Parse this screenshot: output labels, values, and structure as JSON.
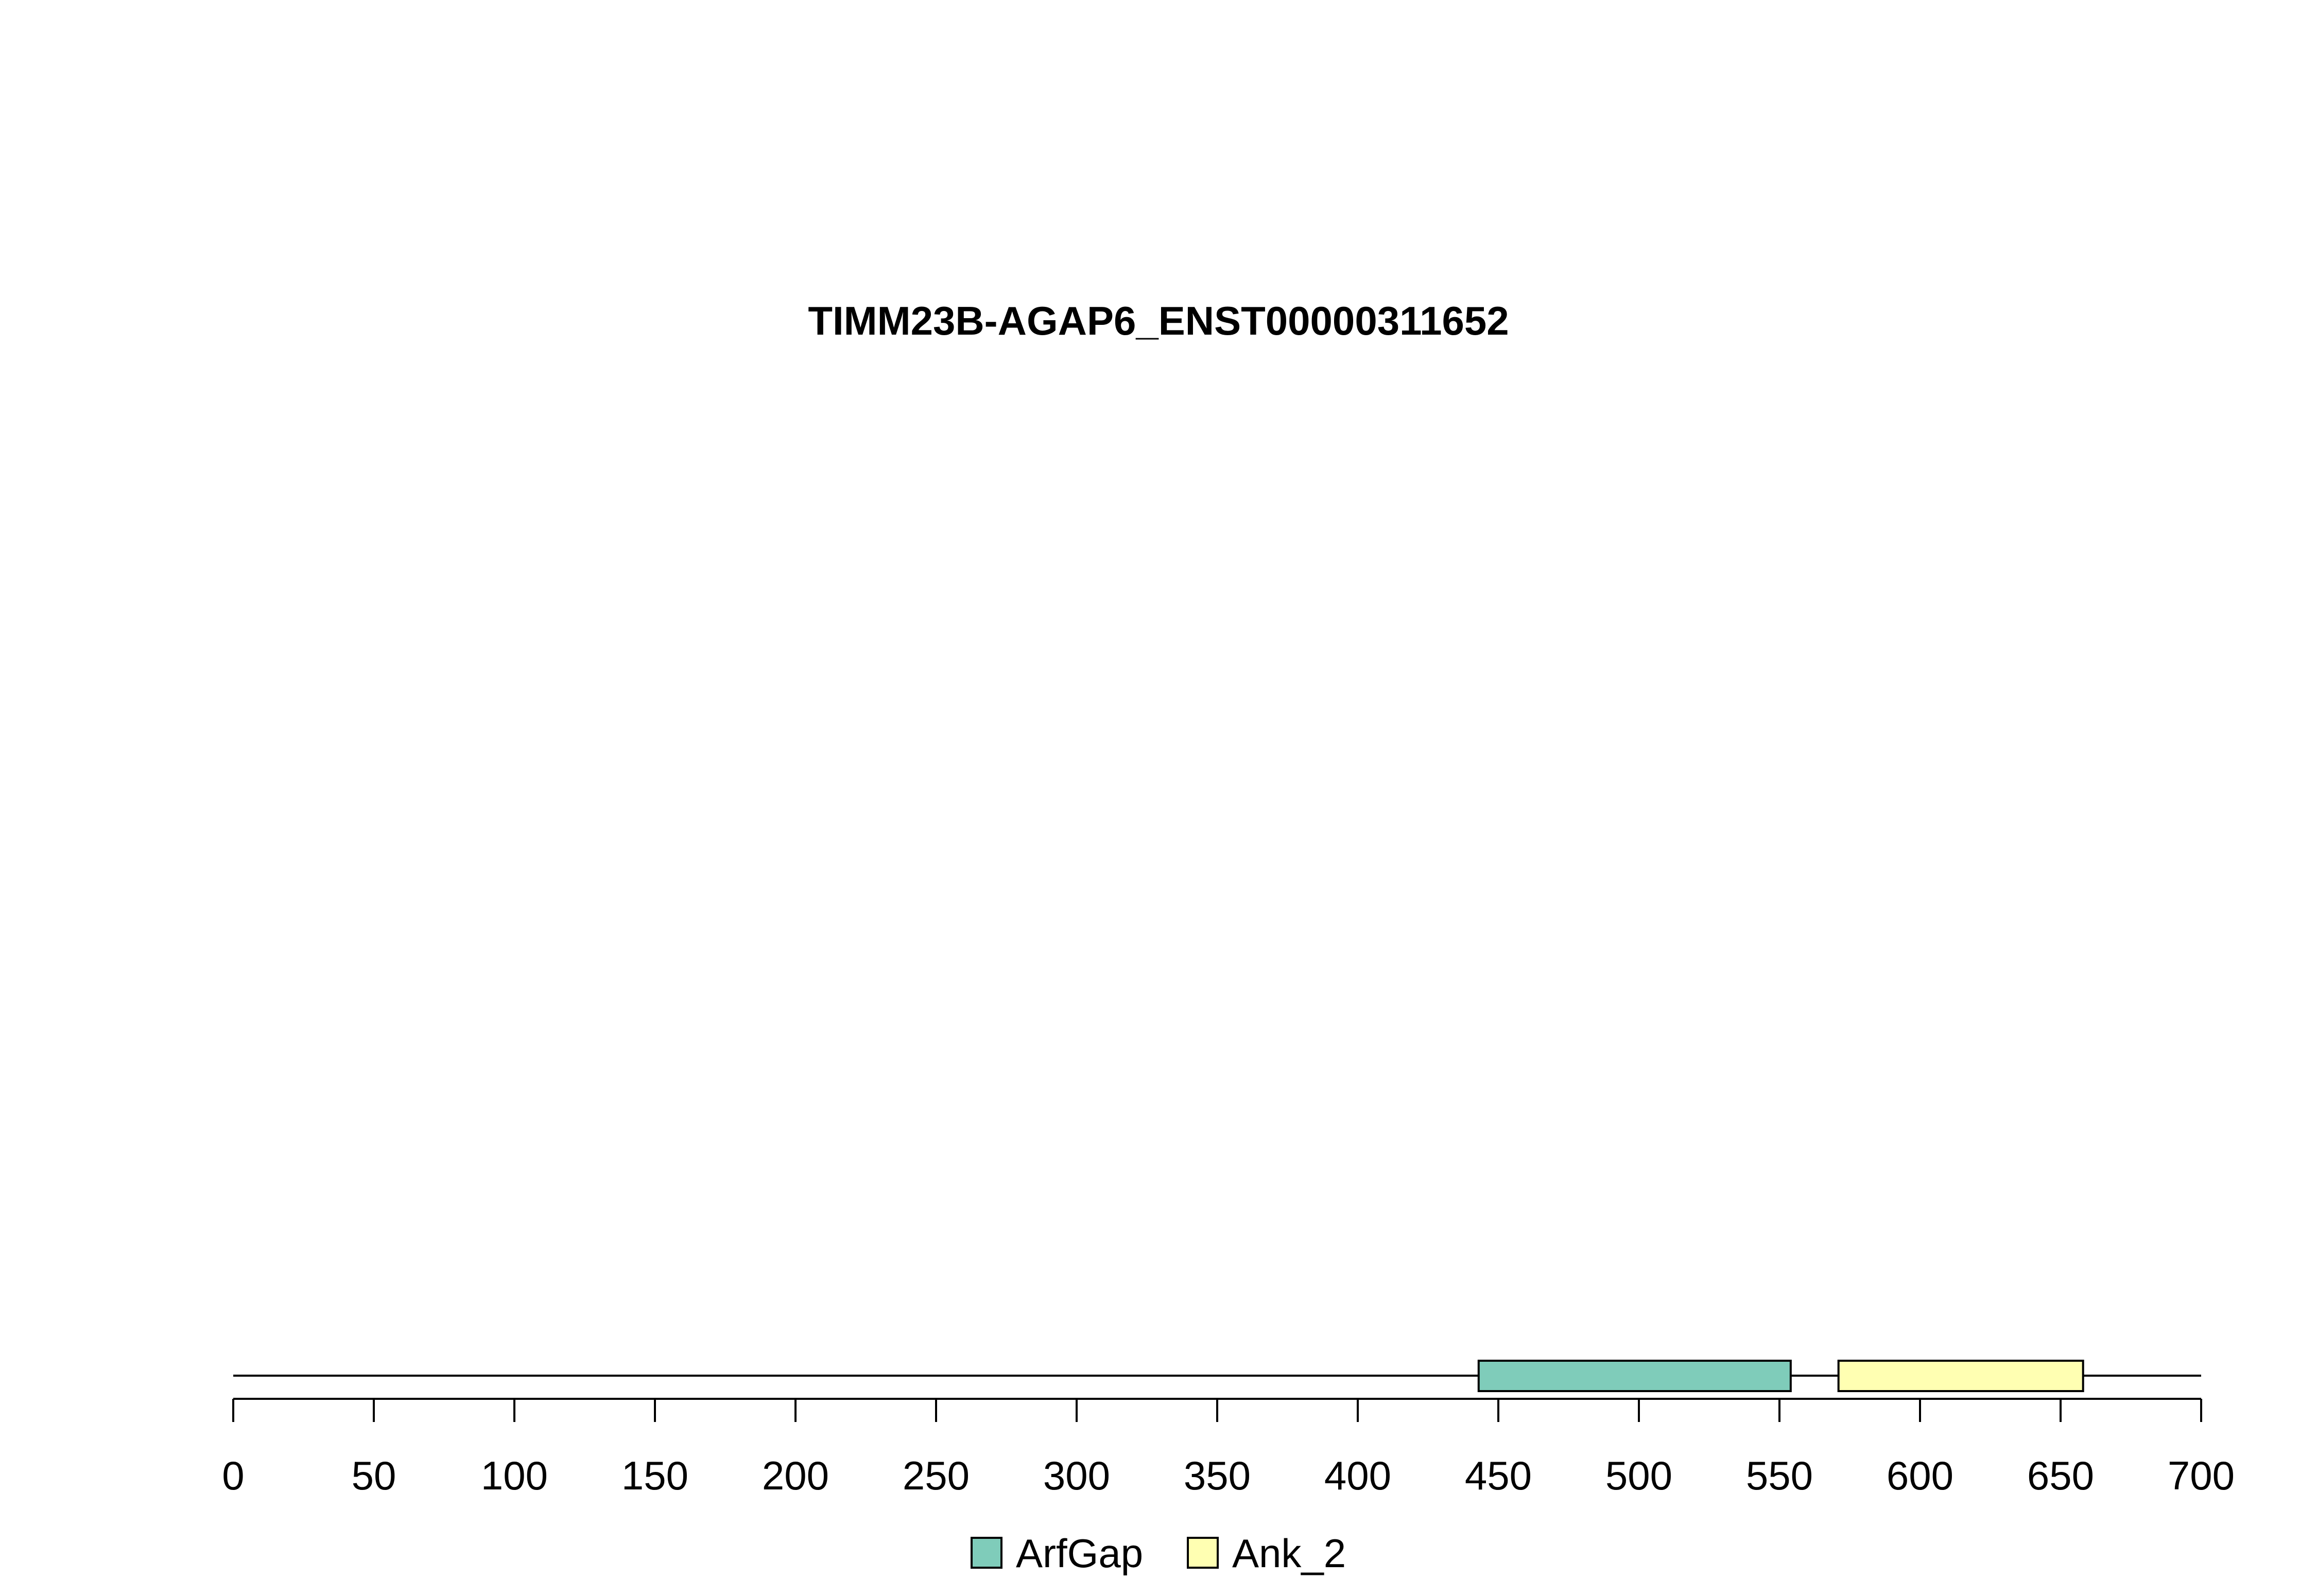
{
  "chart_data": {
    "type": "bar",
    "title": "TIMM23B-AGAP6_ENST00000311652",
    "xlim": [
      0,
      700
    ],
    "protein_length": 700,
    "x_ticks": [
      0,
      50,
      100,
      150,
      200,
      250,
      300,
      350,
      400,
      450,
      500,
      550,
      600,
      650,
      700
    ],
    "domains": [
      {
        "name": "ArfGap",
        "start": 443,
        "end": 554,
        "color": "#7fccba"
      },
      {
        "name": "Ank_2",
        "start": 571,
        "end": 658,
        "color": "#ffffb2"
      }
    ],
    "legend": {
      "position": "bottom-center",
      "entries": [
        {
          "label": "ArfGap",
          "color": "#7fccba"
        },
        {
          "label": "Ank_2",
          "color": "#ffffb2"
        }
      ]
    },
    "grid": false
  }
}
